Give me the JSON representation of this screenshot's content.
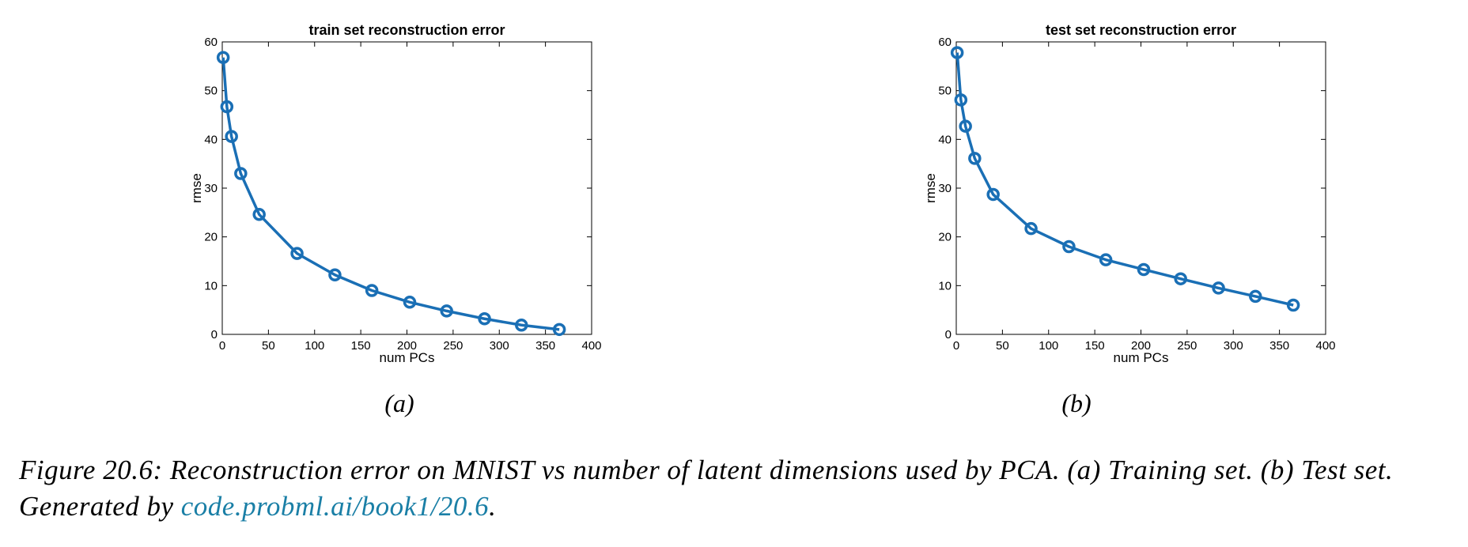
{
  "chart_data": [
    {
      "type": "line",
      "title": "train set reconstruction error",
      "xlabel": "num PCs",
      "ylabel": "rmse",
      "xlim": [
        0,
        400
      ],
      "ylim": [
        0,
        60
      ],
      "xticks": [
        0,
        50,
        100,
        150,
        200,
        250,
        300,
        350,
        400
      ],
      "yticks": [
        0,
        10,
        20,
        30,
        40,
        50,
        60
      ],
      "marker": "circle",
      "color": "#1a6fb5",
      "grid": false,
      "series": [
        {
          "x": [
            1,
            5,
            10,
            20,
            40,
            81,
            122,
            162,
            203,
            243,
            284,
            324,
            365
          ],
          "y": [
            56.8,
            46.7,
            40.6,
            33.0,
            24.6,
            16.6,
            12.2,
            9.0,
            6.6,
            4.8,
            3.2,
            1.9,
            1.0
          ]
        }
      ],
      "sublabel": "(a)"
    },
    {
      "type": "line",
      "title": "test set reconstruction error",
      "xlabel": "num PCs",
      "ylabel": "rmse",
      "xlim": [
        0,
        400
      ],
      "ylim": [
        0,
        60
      ],
      "xticks": [
        0,
        50,
        100,
        150,
        200,
        250,
        300,
        350,
        400
      ],
      "yticks": [
        0,
        10,
        20,
        30,
        40,
        50,
        60
      ],
      "marker": "circle",
      "color": "#1a6fb5",
      "grid": false,
      "series": [
        {
          "x": [
            1,
            5,
            10,
            20,
            40,
            81,
            122,
            162,
            203,
            243,
            284,
            324,
            365
          ],
          "y": [
            57.8,
            48.1,
            42.7,
            36.1,
            28.7,
            21.7,
            18.0,
            15.3,
            13.3,
            11.4,
            9.5,
            7.8,
            6.0
          ]
        }
      ],
      "sublabel": "(b)"
    }
  ],
  "caption": {
    "text": "Figure 20.6: Reconstruction error on MNIST vs number of latent dimensions used by PCA. (a) Training set. (b) Test set. Generated by ",
    "link": "code.probml.ai/book1/20.6",
    "end": "."
  }
}
